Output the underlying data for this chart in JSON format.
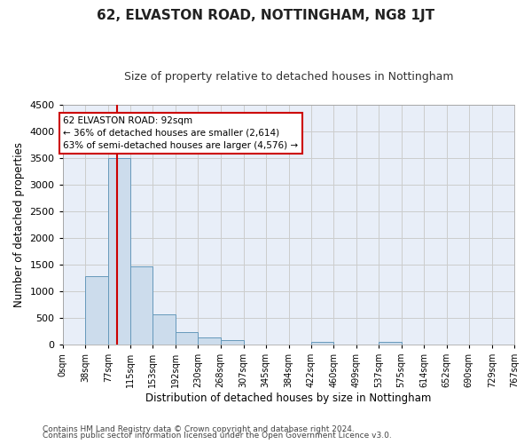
{
  "title": "62, ELVASTON ROAD, NOTTINGHAM, NG8 1JT",
  "subtitle": "Size of property relative to detached houses in Nottingham",
  "xlabel": "Distribution of detached houses by size in Nottingham",
  "ylabel": "Number of detached properties",
  "footnote1": "Contains HM Land Registry data © Crown copyright and database right 2024.",
  "footnote2": "Contains public sector information licensed under the Open Government Licence v3.0.",
  "bin_edges": [
    0,
    38,
    77,
    115,
    153,
    192,
    230,
    268,
    307,
    345,
    384,
    422,
    460,
    499,
    537,
    575,
    614,
    652,
    690,
    729,
    767
  ],
  "bin_labels": [
    "0sqm",
    "38sqm",
    "77sqm",
    "115sqm",
    "153sqm",
    "192sqm",
    "230sqm",
    "268sqm",
    "307sqm",
    "345sqm",
    "384sqm",
    "422sqm",
    "460sqm",
    "499sqm",
    "537sqm",
    "575sqm",
    "614sqm",
    "652sqm",
    "690sqm",
    "729sqm",
    "767sqm"
  ],
  "bar_heights": [
    5,
    1280,
    3500,
    1470,
    570,
    240,
    130,
    90,
    5,
    5,
    5,
    55,
    5,
    5,
    55,
    5,
    5,
    5,
    5,
    5
  ],
  "bar_color": "#ccdcec",
  "bar_edge_color": "#6699bb",
  "red_line_x": 92,
  "ylim": [
    0,
    4500
  ],
  "yticks": [
    0,
    500,
    1000,
    1500,
    2000,
    2500,
    3000,
    3500,
    4000,
    4500
  ],
  "annotation_title": "62 ELVASTON ROAD: 92sqm",
  "annotation_line1": "← 36% of detached houses are smaller (2,614)",
  "annotation_line2": "63% of semi-detached houses are larger (4,576) →",
  "annotation_box_color": "#ffffff",
  "annotation_box_edge": "#cc0000",
  "fig_bg_color": "#ffffff",
  "plot_bg_color": "#e8eef8",
  "grid_color": "#cccccc",
  "title_fontsize": 11,
  "subtitle_fontsize": 9
}
